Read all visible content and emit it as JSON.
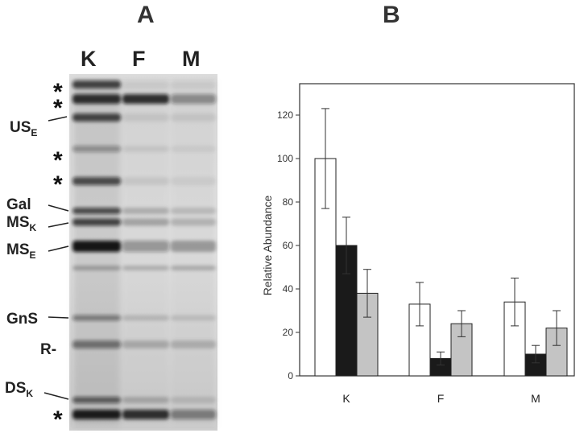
{
  "panel_a": {
    "letter": "A",
    "lanes": [
      "K",
      "F",
      "M"
    ],
    "band_labels": {
      "us": {
        "main": "US",
        "sub": "E"
      },
      "gal": {
        "main": "Gal",
        "sub": ""
      },
      "ms_k": {
        "main": "MS",
        "sub": "K"
      },
      "ms_e": {
        "main": "MS",
        "sub": "E"
      },
      "gns": {
        "main": "GnS",
        "sub": ""
      },
      "r": {
        "main": "R-",
        "sub": ""
      },
      "ds_k": {
        "main": "DS",
        "sub": "K"
      }
    },
    "star_symbol": "*"
  },
  "panel_b": {
    "letter": "B"
  },
  "chart_data": {
    "type": "bar",
    "title": "",
    "xlabel": "",
    "ylabel": "Relative Abundance",
    "categories": [
      "K",
      "F",
      "M"
    ],
    "ylim": [
      0,
      130
    ],
    "yticks": [
      0,
      20,
      40,
      60,
      80,
      100,
      120
    ],
    "series": [
      {
        "color": "#ffffff",
        "values": [
          100,
          33,
          34
        ],
        "errors": [
          23,
          10,
          11
        ]
      },
      {
        "color": "#1a1a1a",
        "values": [
          60,
          8,
          10
        ],
        "errors": [
          13,
          3,
          4
        ]
      },
      {
        "color": "#c4c4c4",
        "values": [
          38,
          24,
          22
        ],
        "errors": [
          11,
          6,
          8
        ]
      }
    ],
    "grid": false,
    "legend": "none"
  }
}
